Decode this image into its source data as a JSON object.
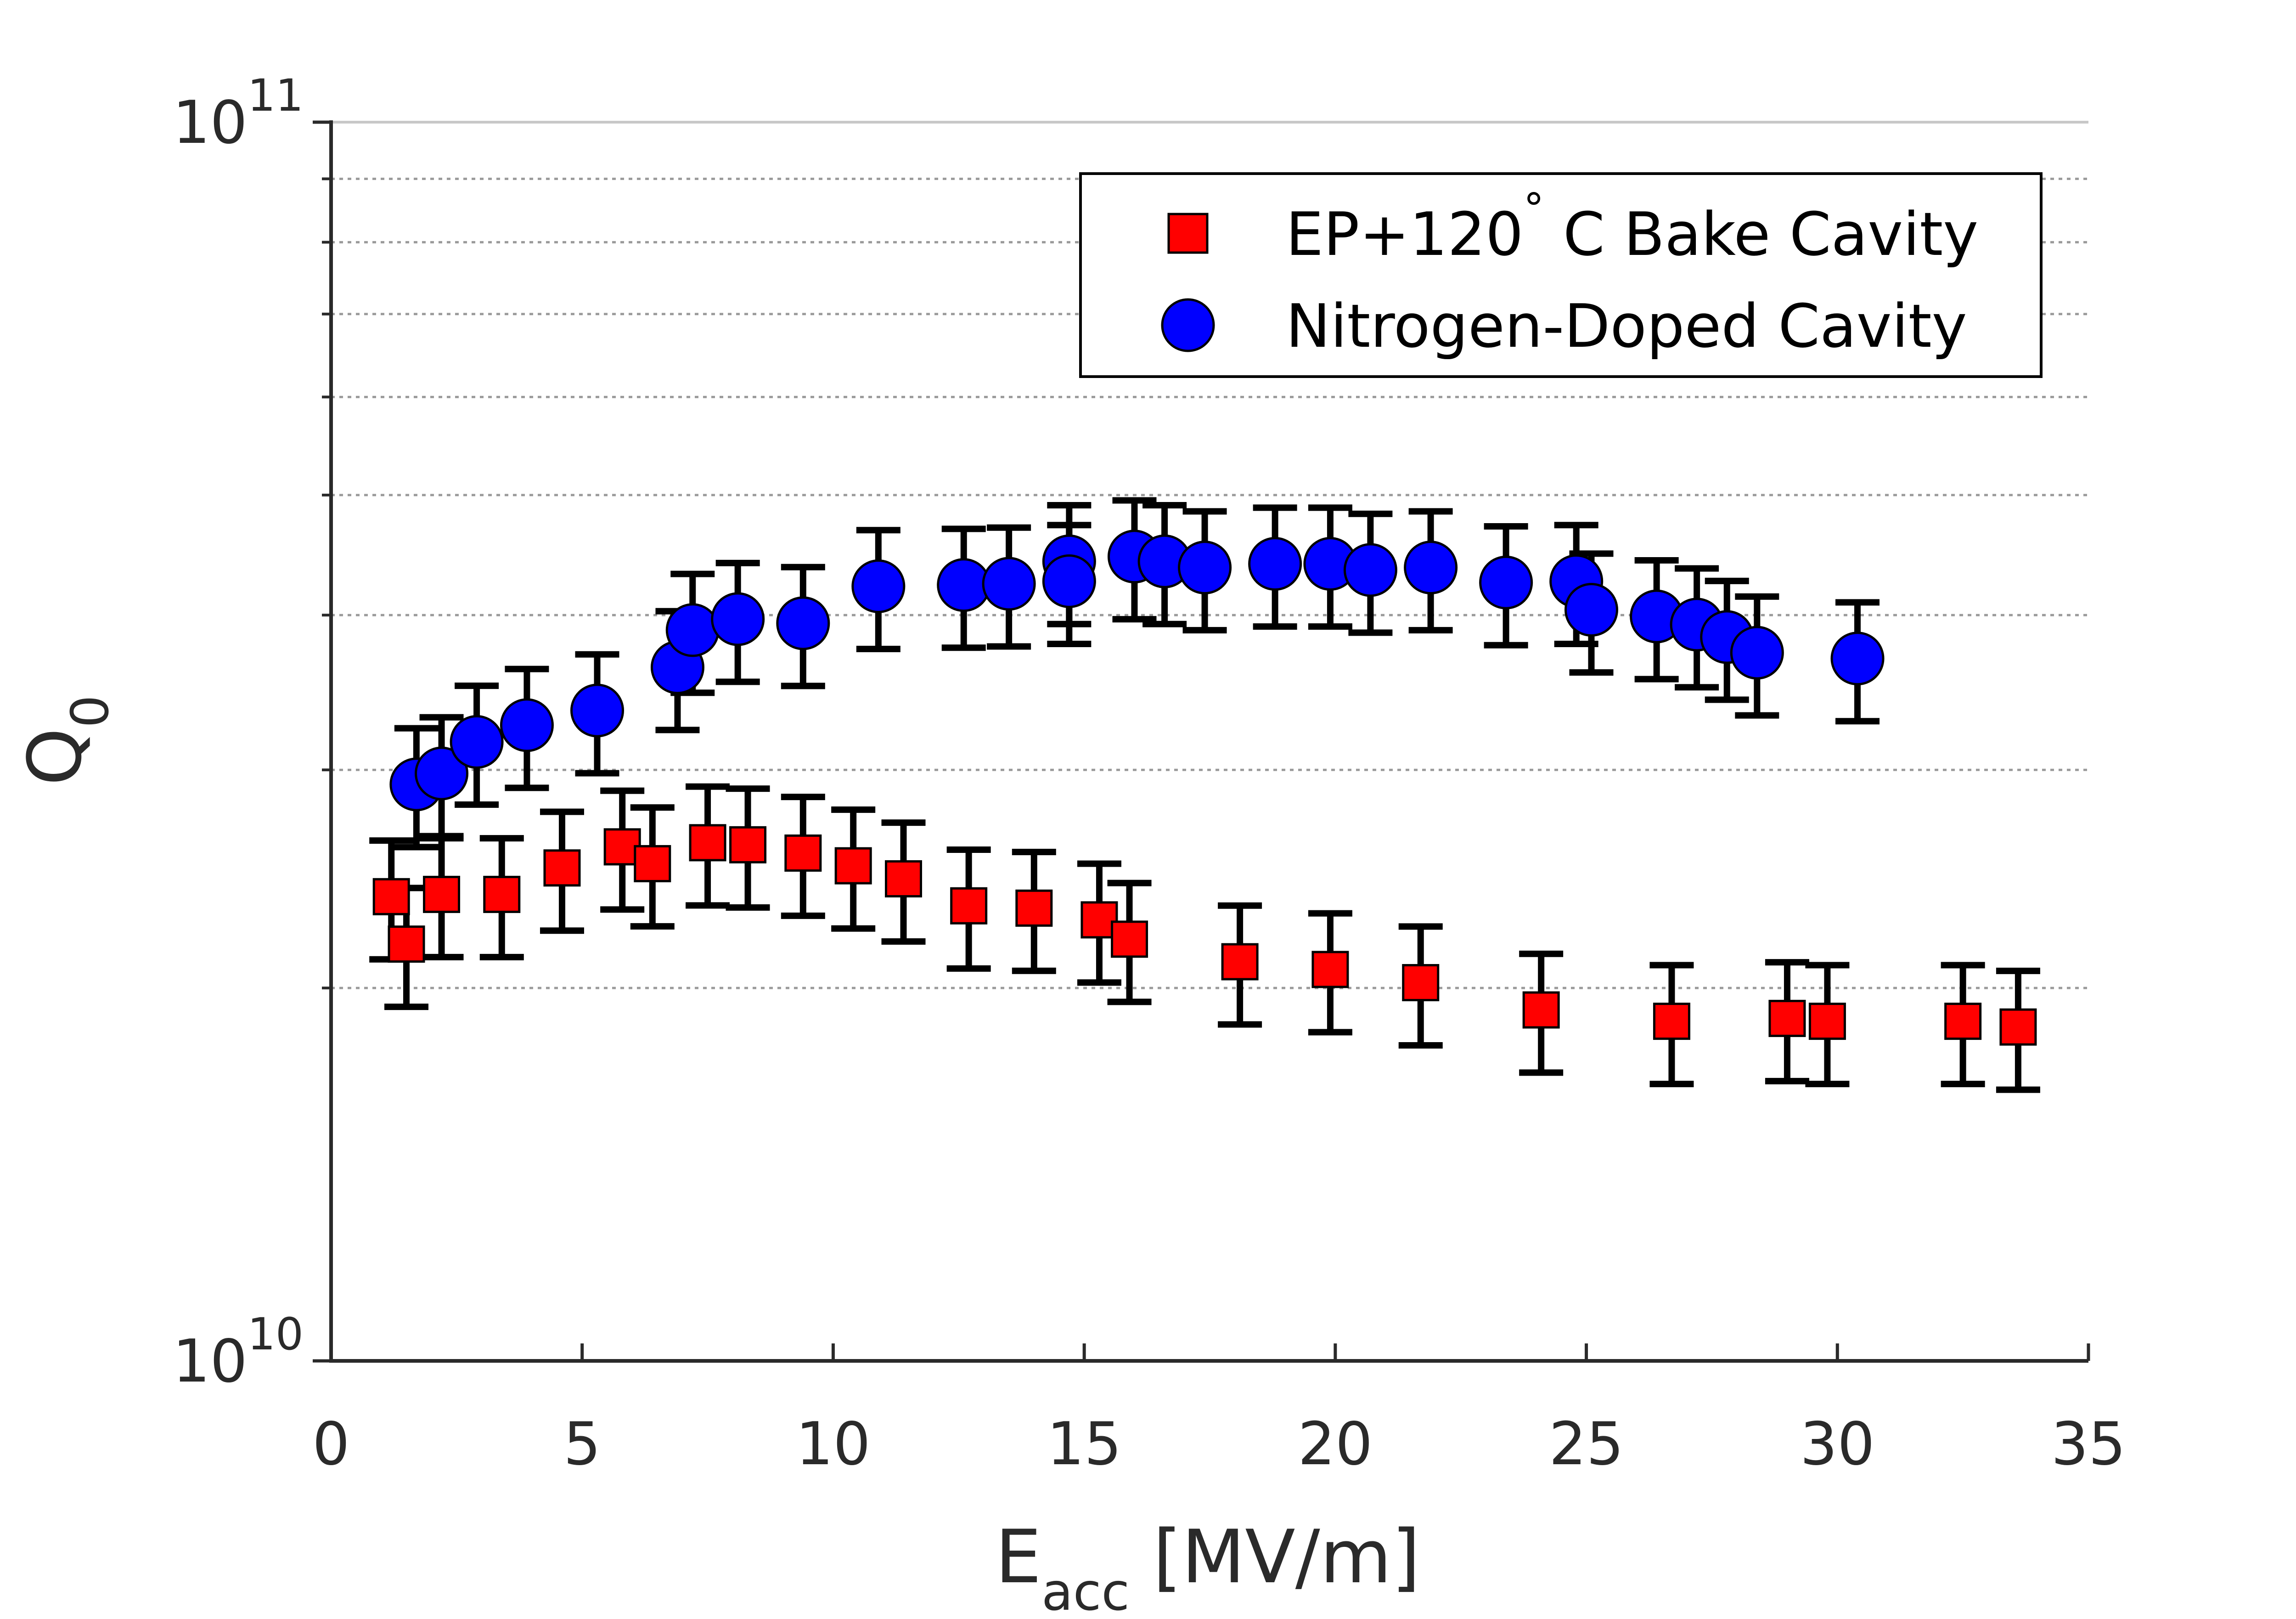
{
  "chart_data": {
    "type": "scatter",
    "xlabel_main": "E",
    "xlabel_sub": "acc",
    "xlabel_rest": " [MV/m]",
    "ylabel_main": "Q",
    "ylabel_sub": "0",
    "xlim": [
      0,
      35
    ],
    "ylim": [
      10000000000,
      100000000000
    ],
    "yscale": "log",
    "x_ticks": [
      {
        "value": 0,
        "label": "0"
      },
      {
        "value": 5,
        "label": "5"
      },
      {
        "value": 10,
        "label": "10"
      },
      {
        "value": 15,
        "label": "15"
      },
      {
        "value": 20,
        "label": "20"
      },
      {
        "value": 25,
        "label": "25"
      },
      {
        "value": 30,
        "label": "30"
      },
      {
        "value": 35,
        "label": "35"
      }
    ],
    "y_ticks": [
      {
        "value": 10000000000,
        "base": "10",
        "exp": "10"
      },
      {
        "value": 100000000000,
        "base": "10",
        "exp": "11"
      }
    ],
    "grid": "horizontal dotted at minor log ticks",
    "legend_position": "top-right",
    "series": [
      {
        "name_main": "EP+120",
        "name_degree": "°",
        "name_rest": " C Bake Cavity",
        "marker": "square",
        "color": "#ff0000",
        "error_fraction": 0.11,
        "points": [
          [
            1.2,
            23700000000.0
          ],
          [
            1.5,
            21700000000.0
          ],
          [
            2.2,
            23800000000.0
          ],
          [
            3.4,
            23800000000.0
          ],
          [
            4.6,
            25000000000.0
          ],
          [
            5.8,
            26000000000.0
          ],
          [
            6.4,
            25200000000.0
          ],
          [
            7.5,
            26200000000.0
          ],
          [
            8.3,
            26100000000.0
          ],
          [
            9.4,
            25700000000.0
          ],
          [
            10.4,
            25100000000.0
          ],
          [
            11.4,
            24500000000.0
          ],
          [
            12.7,
            23300000000.0
          ],
          [
            14.0,
            23200000000.0
          ],
          [
            15.3,
            22700000000.0
          ],
          [
            15.9,
            21900000000.0
          ],
          [
            18.1,
            21000000000.0
          ],
          [
            19.9,
            20700000000.0
          ],
          [
            21.7,
            20200000000.0
          ],
          [
            24.1,
            19200000000.0
          ],
          [
            26.7,
            18800000000.0
          ],
          [
            29.0,
            18900000000.0
          ],
          [
            29.8,
            18800000000.0
          ],
          [
            32.5,
            18800000000.0
          ],
          [
            33.6,
            18600000000.0
          ]
        ]
      },
      {
        "name": "Nitrogen-Doped Cavity",
        "marker": "circle",
        "color": "#0000ff",
        "error_fraction": 0.11,
        "points": [
          [
            1.7,
            29200000000.0
          ],
          [
            2.2,
            29800000000.0
          ],
          [
            2.9,
            31600000000.0
          ],
          [
            3.9,
            32600000000.0
          ],
          [
            5.3,
            33500000000.0
          ],
          [
            6.9,
            36300000000.0
          ],
          [
            7.2,
            38900000000.0
          ],
          [
            8.1,
            39700000000.0
          ],
          [
            9.4,
            39400000000.0
          ],
          [
            10.9,
            42200000000.0
          ],
          [
            12.6,
            42300000000.0
          ],
          [
            13.5,
            42400000000.0
          ],
          [
            14.7,
            44200000000.0
          ],
          [
            14.7,
            42600000000.0
          ],
          [
            16.0,
            44600000000.0
          ],
          [
            16.6,
            44200000000.0
          ],
          [
            17.4,
            43700000000.0
          ],
          [
            18.8,
            44000000000.0
          ],
          [
            19.9,
            44000000000.0
          ],
          [
            20.7,
            43500000000.0
          ],
          [
            21.9,
            43700000000.0
          ],
          [
            23.4,
            42500000000.0
          ],
          [
            24.8,
            42600000000.0
          ],
          [
            25.1,
            40400000000.0
          ],
          [
            26.4,
            39900000000.0
          ],
          [
            27.2,
            39300000000.0
          ],
          [
            27.8,
            38400000000.0
          ],
          [
            28.4,
            37300000000.0
          ],
          [
            30.4,
            36900000000.0
          ]
        ]
      }
    ]
  }
}
